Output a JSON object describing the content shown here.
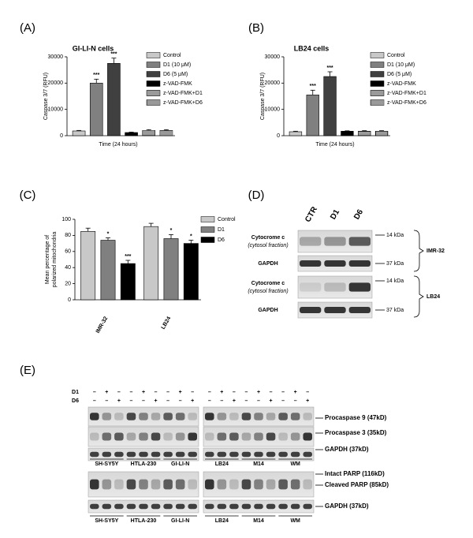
{
  "panels": [
    "(A)",
    "(B)",
    "(C)",
    "(D)",
    "(E)"
  ],
  "chart_data": [
    {
      "type": "bar",
      "title": "GI-LI-N cells",
      "ylabel": "Caspase 3/7 (RFU)",
      "xlabel": "Time (24 hours)",
      "ylim": [
        0,
        30000
      ],
      "yticks": [
        0,
        10000,
        20000,
        30000
      ],
      "series": [
        {
          "name": "Control",
          "color": "#c8c8c8",
          "values": [
            1800
          ],
          "errors": [
            200
          ]
        },
        {
          "name": "D1 (10 μM)",
          "color": "#808080",
          "values": [
            20000
          ],
          "errors": [
            1500
          ],
          "labels": [
            "***"
          ]
        },
        {
          "name": "D6 (5 μM)",
          "color": "#404040",
          "values": [
            27500
          ],
          "errors": [
            2000
          ],
          "labels": [
            "***"
          ]
        },
        {
          "name": "z-VAD-FMK",
          "color": "#000000",
          "values": [
            1200
          ],
          "errors": [
            150
          ]
        },
        {
          "name": "z-VAD-FMK+D1",
          "color": "#ffffff",
          "pattern": "hlines",
          "values": [
            2000
          ],
          "errors": [
            300
          ]
        },
        {
          "name": "z-VAD-FMK+D6",
          "color": "#ffffff",
          "pattern": "vlines",
          "values": [
            2000
          ],
          "errors": [
            300
          ]
        }
      ]
    },
    {
      "type": "bar",
      "title": "LB24 cells",
      "ylabel": "Caspase 3/7 (RFU)",
      "xlabel": "Time (24 hours)",
      "ylim": [
        0,
        30000
      ],
      "yticks": [
        0,
        10000,
        20000,
        30000
      ],
      "series": [
        {
          "name": "Control",
          "color": "#c8c8c8",
          "values": [
            1500
          ],
          "errors": [
            200
          ]
        },
        {
          "name": "D1 (10 μM)",
          "color": "#808080",
          "values": [
            15500
          ],
          "errors": [
            1800
          ],
          "labels": [
            "***"
          ]
        },
        {
          "name": "D6 (5 μM)",
          "color": "#404040",
          "values": [
            22500
          ],
          "errors": [
            1800
          ],
          "labels": [
            "***"
          ]
        },
        {
          "name": "z-VAD-FMK",
          "color": "#000000",
          "values": [
            1700
          ],
          "errors": [
            150
          ]
        },
        {
          "name": "z-VAD-FMK+D1",
          "color": "#ffffff",
          "pattern": "hlines",
          "values": [
            1700
          ],
          "errors": [
            200
          ]
        },
        {
          "name": "z-VAD-FMK+D6",
          "color": "#ffffff",
          "pattern": "vlines",
          "values": [
            1700
          ],
          "errors": [
            200
          ]
        }
      ]
    },
    {
      "type": "bar",
      "ylabel": [
        "Mean percentage of",
        "polarized mitochondria"
      ],
      "categories": [
        "IMR-32",
        "LB24"
      ],
      "ylim": [
        0,
        100
      ],
      "yticks": [
        0,
        20,
        40,
        60,
        80,
        100
      ],
      "series": [
        {
          "name": "Control",
          "color": "#c8c8c8",
          "values": [
            85,
            91
          ],
          "errors": [
            4,
            4
          ]
        },
        {
          "name": "D1",
          "color": "#808080",
          "values": [
            74,
            76
          ],
          "errors": [
            3,
            5
          ],
          "labels": [
            "*",
            "*"
          ]
        },
        {
          "name": "D6",
          "color": "#000000",
          "values": [
            45,
            70
          ],
          "errors": [
            4,
            4
          ],
          "labels": [
            "***",
            "*"
          ]
        }
      ]
    }
  ],
  "blot_d": {
    "lanes": [
      "CTR",
      "D1",
      "D6"
    ],
    "groups": [
      "IMR-32",
      "LB24"
    ],
    "rows": [
      {
        "label": "Cytocrome c",
        "sublabel": "(cytosol fraction)",
        "marker": "14 kDa"
      },
      {
        "label": "GAPDH",
        "marker": "37 kDa"
      }
    ]
  },
  "blot_e": {
    "treatments": [
      {
        "name": "D1",
        "signs": [
          "–",
          "+",
          "–"
        ]
      },
      {
        "name": "D6",
        "signs": [
          "–",
          "–",
          "+"
        ]
      }
    ],
    "cell_lines": [
      [
        "SH-SY5Y",
        "HTLA-230",
        "GI-LI-N"
      ],
      [
        "LB24",
        "M14",
        "WM"
      ]
    ],
    "top_bands": [
      "Procaspase 9 (47kD)",
      "Procaspase 3 (35kD)",
      "GAPDH (37kD)"
    ],
    "bottom_bands": [
      "Intact PARP (116kD)",
      "Cleaved PARP (85kD)",
      "GAPDH (37kD)"
    ]
  }
}
